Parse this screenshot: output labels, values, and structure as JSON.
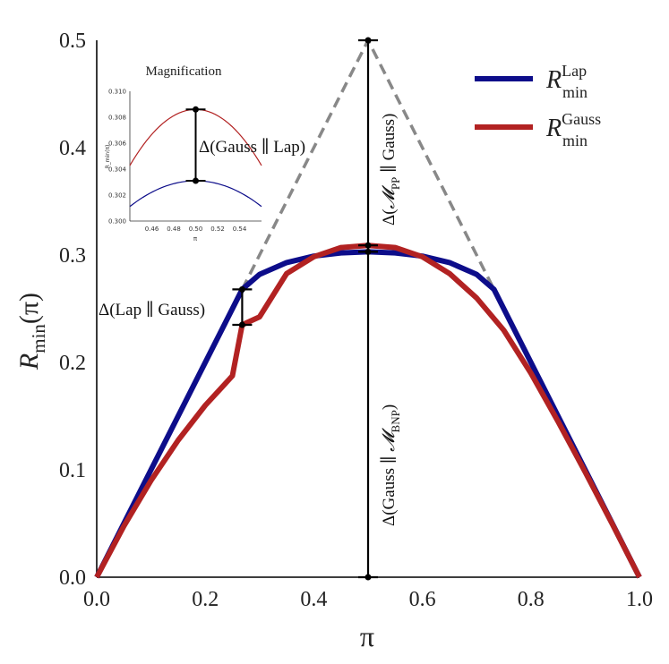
{
  "chart_data": {
    "type": "line",
    "xlabel": "π",
    "ylabel_main": "R",
    "ylabel_sub": "min",
    "ylabel_arg": "(π)",
    "xlim": [
      0.0,
      1.0
    ],
    "ylim": [
      0.0,
      0.5
    ],
    "xticks": [
      "0.0",
      "0.2",
      "0.4",
      "0.6",
      "0.8",
      "1.0"
    ],
    "yticks": [
      "0.0",
      "0.1",
      "0.2",
      "0.3",
      "0.4",
      "0.5"
    ],
    "series": [
      {
        "name": "R_min^Lap",
        "label_main": "R",
        "label_sup": "Lap",
        "label_sub": "min",
        "color": "#0d0d8a",
        "x": [
          0.0,
          0.05,
          0.1,
          0.15,
          0.2,
          0.25,
          0.268,
          0.3,
          0.35,
          0.4,
          0.45,
          0.5,
          0.55,
          0.6,
          0.65,
          0.7,
          0.732,
          0.75,
          0.8,
          0.85,
          0.9,
          0.95,
          1.0
        ],
        "y": [
          0.0,
          0.05,
          0.1,
          0.15,
          0.2,
          0.25,
          0.268,
          0.282,
          0.293,
          0.299,
          0.302,
          0.303,
          0.302,
          0.299,
          0.293,
          0.282,
          0.268,
          0.25,
          0.2,
          0.15,
          0.1,
          0.05,
          0.0
        ]
      },
      {
        "name": "R_min^Gauss",
        "label_main": "R",
        "label_sup": "Gauss",
        "label_sub": "min",
        "color": "#b22222",
        "x": [
          0.0,
          0.05,
          0.1,
          0.15,
          0.2,
          0.25,
          0.268,
          0.3,
          0.35,
          0.4,
          0.45,
          0.5,
          0.55,
          0.6,
          0.65,
          0.7,
          0.75,
          0.8,
          0.85,
          0.9,
          0.95,
          1.0
        ],
        "y": [
          0.0,
          0.0475,
          0.09,
          0.1275,
          0.16,
          0.1875,
          0.235,
          0.2424,
          0.2828,
          0.2984,
          0.307,
          0.309,
          0.307,
          0.2984,
          0.2828,
          0.26,
          0.23,
          0.19,
          0.145,
          0.098,
          0.0495,
          0.0
        ]
      }
    ],
    "dashed_lines": [
      {
        "color": "#888888",
        "x": [
          0.268,
          0.5,
          0.732
        ],
        "y": [
          0.268,
          0.5,
          0.268
        ]
      }
    ],
    "intervals": [
      {
        "x": 0.268,
        "y0": 0.235,
        "y1": 0.268,
        "label": "Δ(Lap ∥ Gauss)"
      },
      {
        "x": 0.5,
        "y0": 0.303,
        "y1": 0.5,
        "label": "Δ(𝓜_PP ∥ Gauss)"
      },
      {
        "x": 0.5,
        "y0": 0.0,
        "y1": 0.309,
        "label": "Δ(Gauss ∥ 𝓜_BNP)"
      }
    ],
    "interval_labels": {
      "lap_gauss": "Δ(Lap ∥ Gauss)",
      "mpp_gauss_pre": "Δ(",
      "mpp_sym": "𝓜",
      "mpp_sub": "PP",
      "mpp_post": " ∥ Gauss)",
      "gauss_mbnp_pre": "Δ(Gauss ∥ ",
      "mbnp_sym": "𝓜",
      "mbnp_sub": "BNP",
      "gauss_mbnp_post": ")"
    },
    "inset": {
      "title": "Magnification",
      "xlim": [
        0.44,
        0.56
      ],
      "ylim": [
        0.3,
        0.31
      ],
      "xticks": [
        "0.46",
        "0.48",
        "0.50",
        "0.52",
        "0.54"
      ],
      "yticks": [
        "0.300",
        "0.302",
        "0.304",
        "0.306",
        "0.308",
        "0.310"
      ],
      "xlabel": "π",
      "ylabel": "R_min(π)",
      "annotation": "Δ(Gauss ∥ Lap)",
      "interval": {
        "x": 0.5,
        "y0": 0.3031,
        "y1": 0.3086
      }
    },
    "legend_position": "top-right"
  }
}
